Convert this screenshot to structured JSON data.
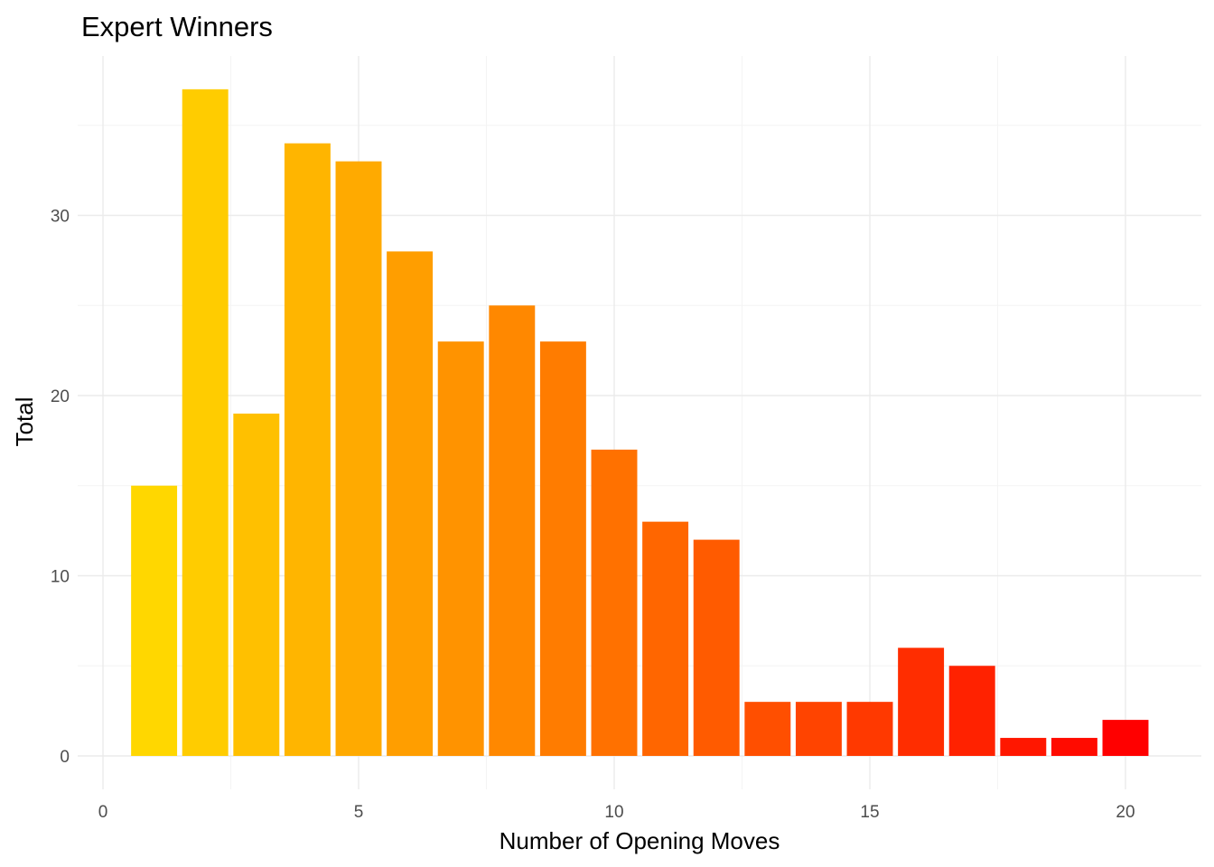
{
  "chart_data": {
    "type": "bar",
    "title": "Expert Winners",
    "xlabel": "Number of Opening Moves",
    "ylabel": "Total",
    "x": [
      1,
      2,
      3,
      4,
      5,
      6,
      7,
      8,
      9,
      10,
      11,
      12,
      13,
      14,
      15,
      16,
      17,
      18,
      19,
      20
    ],
    "values": [
      15,
      37,
      19,
      34,
      33,
      28,
      23,
      25,
      23,
      17,
      13,
      12,
      3,
      3,
      3,
      6,
      5,
      1,
      1,
      2
    ],
    "xlim": [
      -0.5,
      21
    ],
    "ylim": [
      -1.85,
      38.85
    ],
    "x_ticks": [
      "0",
      "5",
      "10",
      "15",
      "20"
    ],
    "y_ticks": [
      "0",
      "10",
      "20",
      "30"
    ],
    "grid": true,
    "legend": "none",
    "color_scale": {
      "low": "#FFD700",
      "high": "#FF0000"
    }
  }
}
